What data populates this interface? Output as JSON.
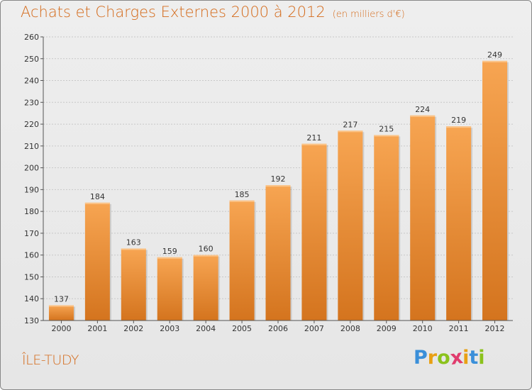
{
  "header": {
    "title": "Achats et Charges Externes 2000 à 2012",
    "unit": "(en milliers d'€)"
  },
  "footer": {
    "city": "ÎLE-TUDY",
    "logo_letters": [
      {
        "ch": "P",
        "color": "#3a8fd9"
      },
      {
        "ch": "r",
        "color": "#e8a014"
      },
      {
        "ch": "o",
        "color": "#8bc21c"
      },
      {
        "ch": "x",
        "color": "#e03c6e"
      },
      {
        "ch": "i",
        "color": "#e8a014"
      },
      {
        "ch": "t",
        "color": "#3a8fd9"
      },
      {
        "ch": "i",
        "color": "#8bc21c"
      }
    ]
  },
  "colors": {
    "bar_top": "#f7a552",
    "bar_bottom": "#d4741e",
    "title": "#d46a1a",
    "grid": "#c8c8c8"
  },
  "chart_data": {
    "type": "bar",
    "categories": [
      "2000",
      "2001",
      "2002",
      "2003",
      "2004",
      "2005",
      "2006",
      "2007",
      "2008",
      "2009",
      "2010",
      "2011",
      "2012"
    ],
    "values": [
      137,
      184,
      163,
      159,
      160,
      185,
      192,
      211,
      217,
      215,
      224,
      219,
      249
    ],
    "ylim": [
      130,
      260
    ],
    "yticks": [
      130,
      140,
      150,
      160,
      170,
      180,
      190,
      200,
      210,
      220,
      230,
      240,
      250,
      260
    ],
    "grid": true
  }
}
